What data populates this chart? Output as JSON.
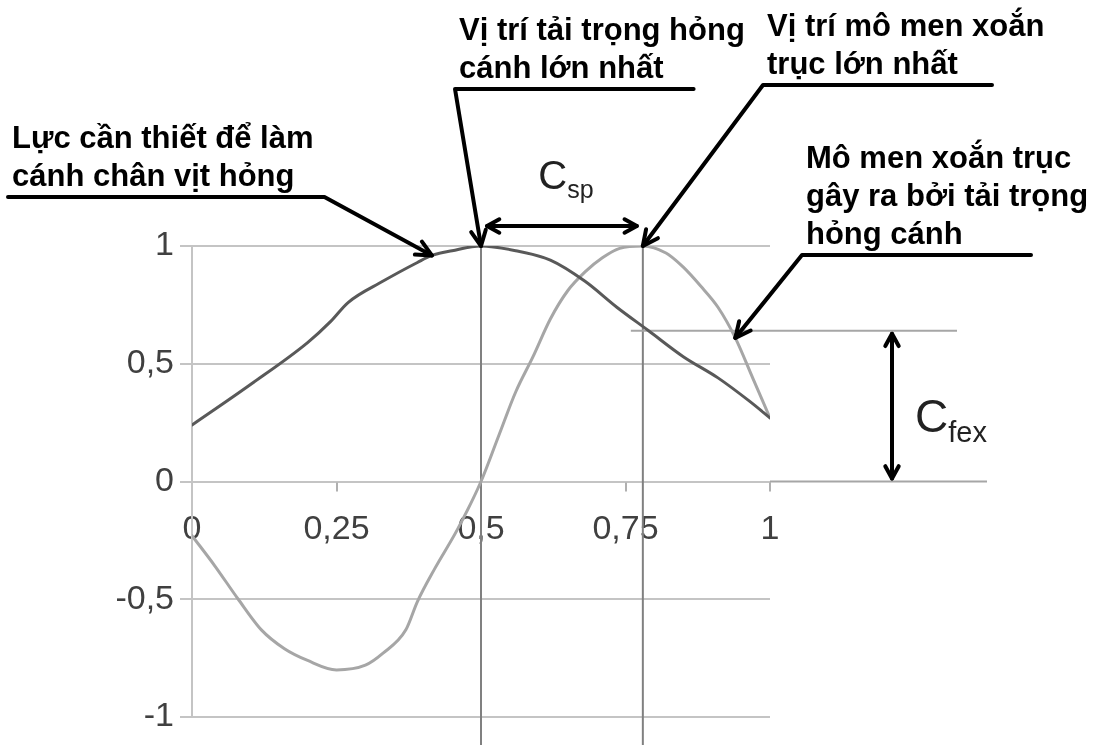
{
  "chart_data": {
    "type": "line",
    "series": [
      {
        "color": "#595959",
        "x": [
          0,
          0.1,
          0.2,
          0.24,
          0.27,
          0.33,
          0.39,
          0.415,
          0.45,
          0.5,
          0.56,
          0.62,
          0.68,
          0.735,
          0.79,
          0.85,
          0.91,
          0.965,
          1
        ],
        "values": [
          0.24,
          0.41,
          0.59,
          0.68,
          0.76,
          0.85,
          0.93,
          0.96,
          0.98,
          1,
          0.98,
          0.94,
          0.85,
          0.74,
          0.64,
          0.53,
          0.44,
          0.34,
          0.27
        ]
      },
      {
        "color": "#a6a6a6",
        "x": [
          0,
          0.04,
          0.08,
          0.12,
          0.16,
          0.2,
          0.25,
          0.3,
          0.33,
          0.37,
          0.39,
          0.42,
          0.46,
          0.5,
          0.53,
          0.56,
          0.59,
          0.62,
          0.65,
          0.68,
          0.71,
          0.74,
          0.78,
          0.82,
          0.85,
          0.88,
          0.91,
          0.94,
          0.97,
          1
        ],
        "values": [
          -0.23,
          -0.36,
          -0.5,
          -0.63,
          -0.71,
          -0.76,
          -0.8,
          -0.78,
          -0.73,
          -0.63,
          -0.51,
          -0.37,
          -0.2,
          0,
          0.19,
          0.38,
          0.53,
          0.69,
          0.81,
          0.89,
          0.95,
          0.99,
          1,
          0.97,
          0.91,
          0.83,
          0.74,
          0.61,
          0.44,
          0.27
        ]
      }
    ],
    "xlim": [
      0,
      1
    ],
    "xticks": [
      0,
      {
        "value": 0.25,
        "label": "0,25"
      },
      {
        "value": 0.5,
        "label": "0,5"
      },
      {
        "value": 0.75,
        "label": "0,75"
      },
      1
    ],
    "ylim": [
      -1,
      1
    ],
    "yticks": [
      -1,
      {
        "value": -0.5,
        "label": "-0,5"
      },
      0,
      {
        "value": 0.5,
        "label": "0,5"
      },
      1
    ],
    "grid": "y",
    "ref_lines": [
      {
        "axis": "x",
        "value": 0.5,
        "label": "Vị trí tải trọng hỏng cánh lớn nhất",
        "color": "#808080"
      },
      {
        "axis": "x",
        "value": 0.78,
        "label": "Vị trí mô men xoắn trục lớn nhất",
        "color": "#808080"
      },
      {
        "axis": "y",
        "value": 0.64,
        "label": "C$_{fex}$",
        "color": "#a6a6a6"
      }
    ],
    "annotations": [
      {
        "text": "Lực cần thiết để làm cánh chân vịt hỏng",
        "x": 0.415,
        "y": 0.96
      },
      {
        "text": "Mô men xoắn trục gây ra bởi tải trọng hỏng cánh",
        "x": 0.94,
        "y": 0.61
      },
      "C$_{sp}$"
    ]
  }
}
